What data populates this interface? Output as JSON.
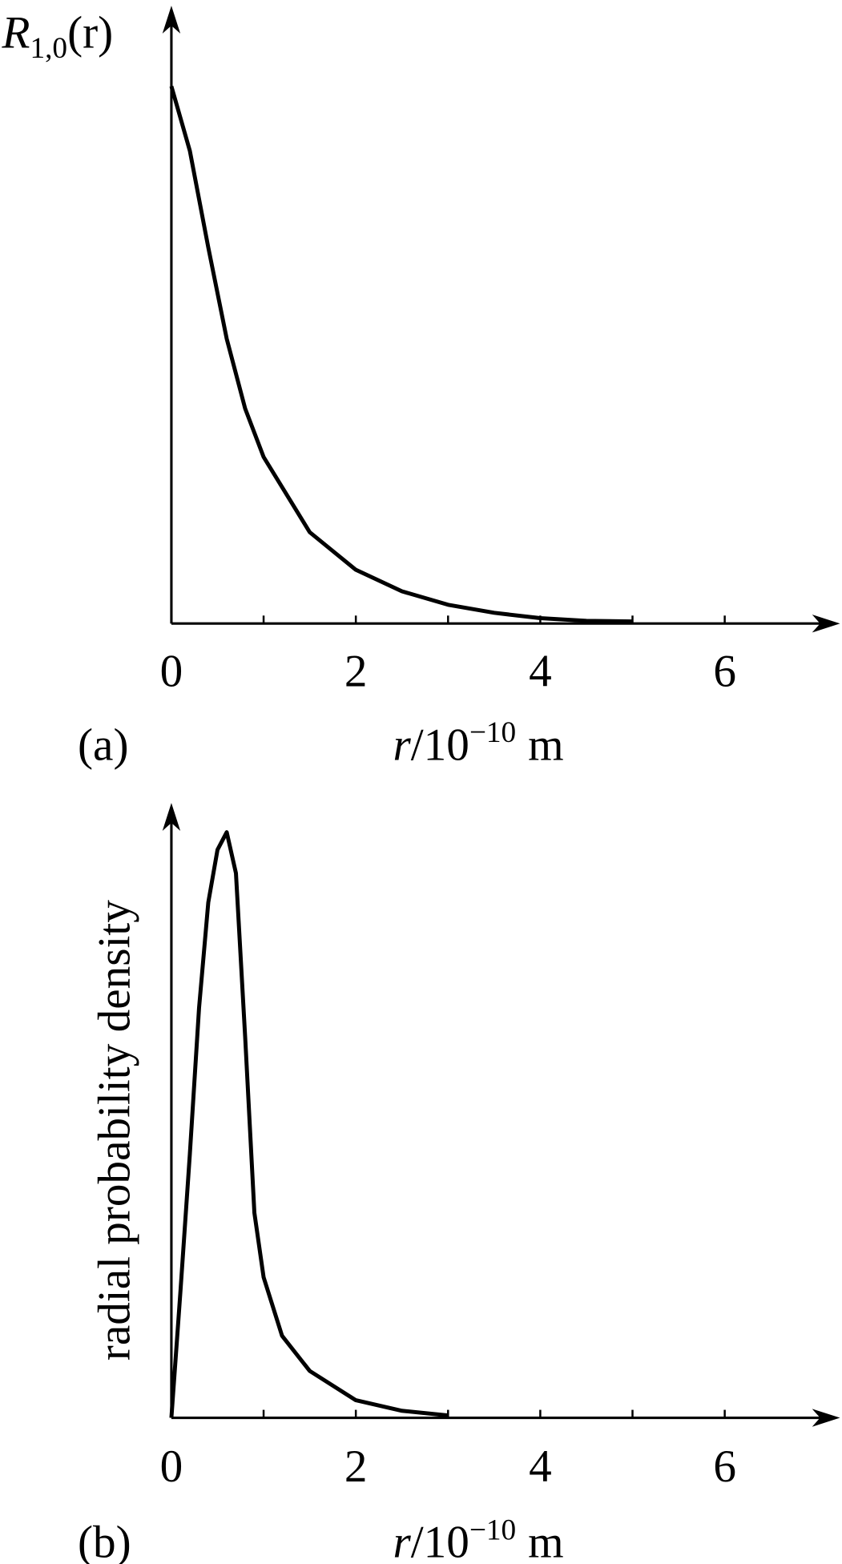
{
  "chart_data": [
    {
      "type": "line",
      "panel": "(a)",
      "ylabel": {
        "main": "R",
        "sub": "1,0",
        "tail": "(r)"
      },
      "xlabel": {
        "var": "r",
        "unit": "/10",
        "exp": "−10",
        "tail": "m"
      },
      "x": [
        0,
        0.2,
        0.4,
        0.6,
        0.8,
        1,
        1.5,
        2,
        2.5,
        3,
        3.5,
        4,
        4.5,
        5
      ],
      "values": [
        1,
        0.88,
        0.7,
        0.53,
        0.4,
        0.31,
        0.17,
        0.1,
        0.06,
        0.035,
        0.02,
        0.01,
        0.005,
        0.004
      ],
      "color": "#000000",
      "xlim": [
        0,
        7.25
      ],
      "xticks": [
        0,
        2,
        4,
        6
      ],
      "xminor": [
        1,
        3,
        5
      ],
      "ylim": [
        0,
        1.15
      ]
    },
    {
      "type": "line",
      "panel": "(b)",
      "ylabel": "radial probability density",
      "xlabel": {
        "var": "r",
        "unit": "/10",
        "exp": "−10",
        "tail": "m"
      },
      "x": [
        0,
        0.1,
        0.2,
        0.3,
        0.4,
        0.5,
        0.6,
        0.7,
        0.8,
        0.9,
        1,
        1.2,
        1.5,
        2,
        2.5,
        3
      ],
      "values": [
        0,
        0.22,
        0.45,
        0.7,
        0.88,
        0.97,
        1,
        0.93,
        0.65,
        0.35,
        0.24,
        0.14,
        0.08,
        0.03,
        0.012,
        0.004
      ],
      "color": "#000000",
      "xlim": [
        0,
        7.25
      ],
      "xticks": [
        0,
        2,
        4,
        6
      ],
      "xminor": [
        1,
        3,
        5
      ],
      "ylim": [
        0,
        1.05
      ]
    }
  ]
}
